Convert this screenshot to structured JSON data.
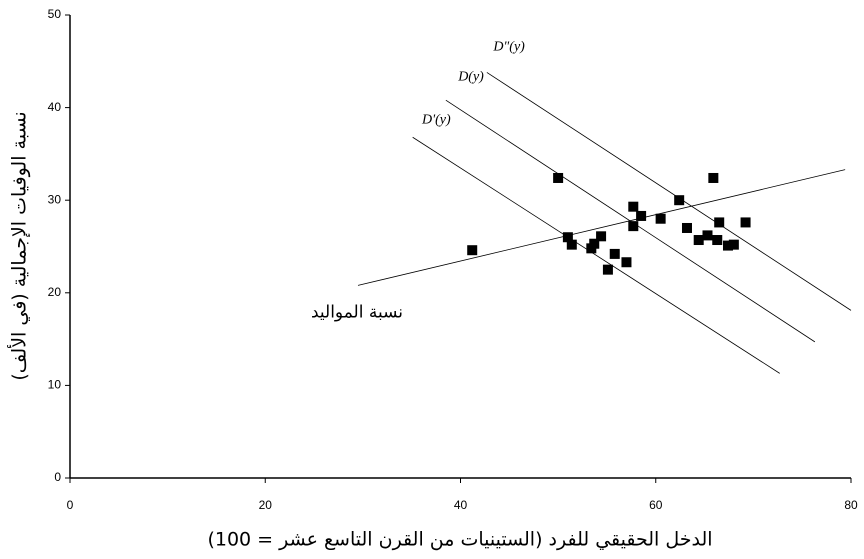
{
  "chart_data": {
    "type": "scatter",
    "x_label": "الدخل الحقيقي للفرد (الستينيات من القرن التاسع عشر = 100)",
    "y_label": "نسبة الوفيات الإجمالية (في الألف)",
    "xlim": [
      0,
      80
    ],
    "xticks": [
      0,
      20,
      40,
      60,
      80
    ],
    "ylim": [
      0,
      50
    ],
    "yticks": [
      0,
      10,
      20,
      30,
      40,
      50
    ],
    "color": "#000000",
    "x": [
      41.2,
      50.0,
      51.0,
      51.4,
      53.4,
      53.7,
      54.4,
      55.1,
      55.8,
      57.0,
      57.7,
      57.7,
      58.5,
      60.5,
      62.4,
      63.2,
      64.4,
      65.3,
      65.9,
      66.3,
      66.5,
      67.4,
      68.0,
      69.2
    ],
    "y": [
      24.6,
      32.4,
      26.0,
      25.2,
      24.8,
      25.3,
      26.1,
      22.5,
      24.2,
      23.3,
      29.3,
      27.2,
      28.3,
      28.0,
      30.0,
      27.0,
      25.7,
      26.2,
      32.4,
      25.7,
      27.6,
      25.1,
      25.2,
      27.6
    ],
    "lines": [
      {
        "name": "نسبة المواليد",
        "x": [
          29.5,
          79.4
        ],
        "y": [
          20.8,
          33.3
        ]
      },
      {
        "name": "D'(y)",
        "x": [
          35.1,
          72.7
        ],
        "y": [
          36.8,
          11.3
        ]
      },
      {
        "name": "D(y)",
        "x": [
          38.5,
          76.3
        ],
        "y": [
          40.8,
          14.7
        ]
      },
      {
        "name": "D\"(y)",
        "x": [
          42.7,
          80.0
        ],
        "y": [
          43.8,
          18.1
        ]
      }
    ]
  }
}
